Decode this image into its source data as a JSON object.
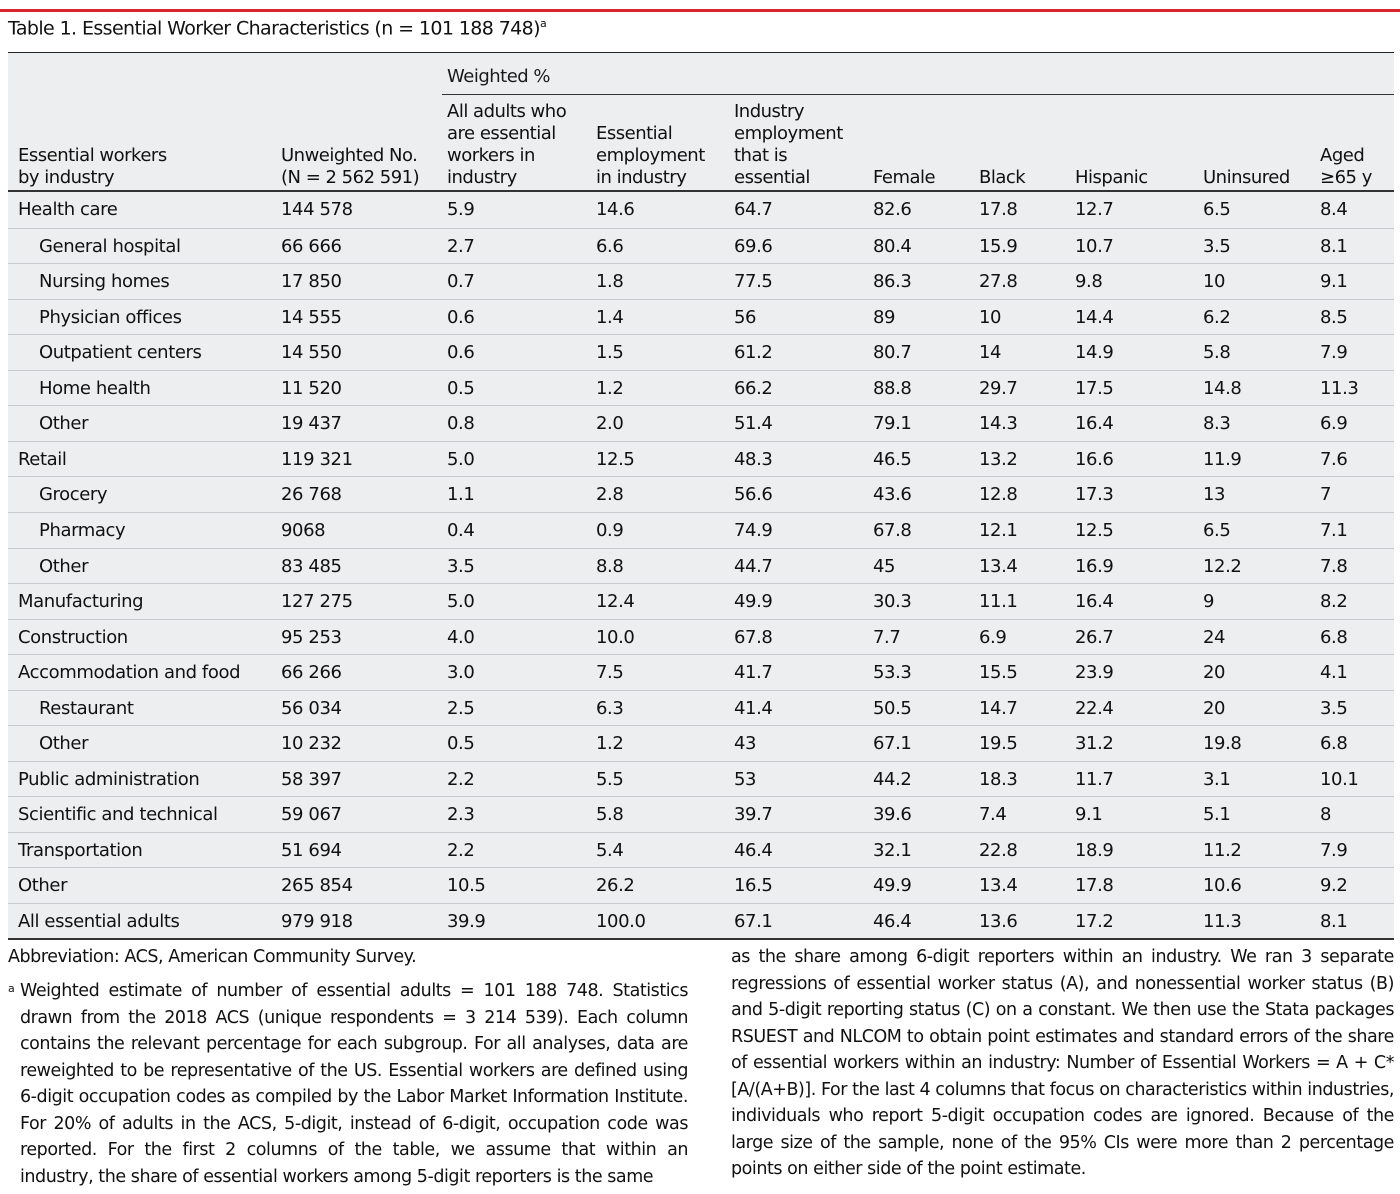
{
  "title": "Table 1. Essential Worker Characteristics (n = 101 188 748)",
  "title_footnote_marker": "a",
  "weighted_group_label": "Weighted %",
  "columns": [
    "Essential workers\nby industry",
    "Unweighted No.\n(N = 2 562 591)",
    "All adults who\nare essential\nworkers in\nindustry",
    "Essential\nemployment\nin industry",
    "Industry\nemployment\nthat is\nessential",
    "Female",
    "Black",
    "Hispanic",
    "Uninsured",
    "Aged\n≥65 y"
  ],
  "rows": [
    {
      "label": "Health care",
      "indent": false,
      "values": [
        "144 578",
        "5.9",
        "14.6",
        "64.7",
        "82.6",
        "17.8",
        "12.7",
        "6.5",
        "8.4"
      ]
    },
    {
      "label": "General hospital",
      "indent": true,
      "values": [
        "66 666",
        "2.7",
        "6.6",
        "69.6",
        "80.4",
        "15.9",
        "10.7",
        "3.5",
        "8.1"
      ]
    },
    {
      "label": "Nursing homes",
      "indent": true,
      "values": [
        "17 850",
        "0.7",
        "1.8",
        "77.5",
        "86.3",
        "27.8",
        "9.8",
        "10",
        "9.1"
      ]
    },
    {
      "label": "Physician offices",
      "indent": true,
      "values": [
        "14 555",
        "0.6",
        "1.4",
        "56",
        "89",
        "10",
        "14.4",
        "6.2",
        "8.5"
      ]
    },
    {
      "label": "Outpatient centers",
      "indent": true,
      "values": [
        "14 550",
        "0.6",
        "1.5",
        "61.2",
        "80.7",
        "14",
        "14.9",
        "5.8",
        "7.9"
      ]
    },
    {
      "label": "Home health",
      "indent": true,
      "values": [
        "11 520",
        "0.5",
        "1.2",
        "66.2",
        "88.8",
        "29.7",
        "17.5",
        "14.8",
        "11.3"
      ]
    },
    {
      "label": "Other",
      "indent": true,
      "values": [
        "19 437",
        "0.8",
        "2.0",
        "51.4",
        "79.1",
        "14.3",
        "16.4",
        "8.3",
        "6.9"
      ]
    },
    {
      "label": "Retail",
      "indent": false,
      "values": [
        "119 321",
        "5.0",
        "12.5",
        "48.3",
        "46.5",
        "13.2",
        "16.6",
        "11.9",
        "7.6"
      ]
    },
    {
      "label": "Grocery",
      "indent": true,
      "values": [
        "26 768",
        "1.1",
        "2.8",
        "56.6",
        "43.6",
        "12.8",
        "17.3",
        "13",
        "7"
      ]
    },
    {
      "label": "Pharmacy",
      "indent": true,
      "values": [
        "9068",
        "0.4",
        "0.9",
        "74.9",
        "67.8",
        "12.1",
        "12.5",
        "6.5",
        "7.1"
      ]
    },
    {
      "label": "Other",
      "indent": true,
      "values": [
        "83 485",
        "3.5",
        "8.8",
        "44.7",
        "45",
        "13.4",
        "16.9",
        "12.2",
        "7.8"
      ]
    },
    {
      "label": "Manufacturing",
      "indent": false,
      "values": [
        "127 275",
        "5.0",
        "12.4",
        "49.9",
        "30.3",
        "11.1",
        "16.4",
        "9",
        "8.2"
      ]
    },
    {
      "label": "Construction",
      "indent": false,
      "values": [
        "95 253",
        "4.0",
        "10.0",
        "67.8",
        "7.7",
        "6.9",
        "26.7",
        "24",
        "6.8"
      ]
    },
    {
      "label": "Accommodation and food",
      "indent": false,
      "values": [
        "66 266",
        "3.0",
        "7.5",
        "41.7",
        "53.3",
        "15.5",
        "23.9",
        "20",
        "4.1"
      ]
    },
    {
      "label": "Restaurant",
      "indent": true,
      "values": [
        "56 034",
        "2.5",
        "6.3",
        "41.4",
        "50.5",
        "14.7",
        "22.4",
        "20",
        "3.5"
      ]
    },
    {
      "label": "Other",
      "indent": true,
      "values": [
        "10 232",
        "0.5",
        "1.2",
        "43",
        "67.1",
        "19.5",
        "31.2",
        "19.8",
        "6.8"
      ]
    },
    {
      "label": "Public administration",
      "indent": false,
      "values": [
        "58 397",
        "2.2",
        "5.5",
        "53",
        "44.2",
        "18.3",
        "11.7",
        "3.1",
        "10.1"
      ]
    },
    {
      "label": "Scientific and technical",
      "indent": false,
      "values": [
        "59 067",
        "2.3",
        "5.8",
        "39.7",
        "39.6",
        "7.4",
        "9.1",
        "5.1",
        "8"
      ]
    },
    {
      "label": "Transportation",
      "indent": false,
      "values": [
        "51 694",
        "2.2",
        "5.4",
        "46.4",
        "32.1",
        "22.8",
        "18.9",
        "11.2",
        "7.9"
      ]
    },
    {
      "label": "Other",
      "indent": false,
      "values": [
        "265 854",
        "10.5",
        "26.2",
        "16.5",
        "49.9",
        "13.4",
        "17.8",
        "10.6",
        "9.2"
      ]
    },
    {
      "label": "All essential adults",
      "indent": false,
      "values": [
        "979 918",
        "39.9",
        "100.0",
        "67.1",
        "46.4",
        "13.6",
        "17.2",
        "11.3",
        "8.1"
      ]
    }
  ],
  "footnotes": {
    "abbreviation": "Abbreviation: ACS, American Community Survey.",
    "note_marker": "a",
    "note_left": "Weighted estimate of number of essential adults = 101 188 748. Statistics drawn from the 2018 ACS (unique respondents = 3 214 539). Each column contains the relevant percentage for each subgroup. For all analyses, data are reweighted to be representative of the US. Essential workers are defined using 6-digit occupation codes as compiled by the Labor Market Information Institute. For 20% of adults in the ACS, 5-digit, instead of 6-digit, occupation code was reported. For the first 2 columns of the table, we assume that within an industry, the share of essential workers among 5-digit reporters is the same",
    "note_right": "as the share among 6-digit reporters within an industry. We ran 3 separate regressions of essential worker status (A), and nonessential worker status (B) and 5-digit reporting status (C) on a constant. We then use the Stata packages RSUEST and NLCOM to obtain point estimates and standard errors of the share of essential workers within an industry: Number of Essential Workers = A + C*[A/(A+B)]. For the last 4 columns that focus on characteristics within industries, individuals who report 5-digit occupation codes are ignored. Because of the large size of the sample, none of the 95% CIs were more than 2 percentage points on either side of the point estimate."
  },
  "colors": {
    "accent": "#d9252e",
    "table_background": "#edeeef",
    "row_separator": "#c7c9cc"
  }
}
